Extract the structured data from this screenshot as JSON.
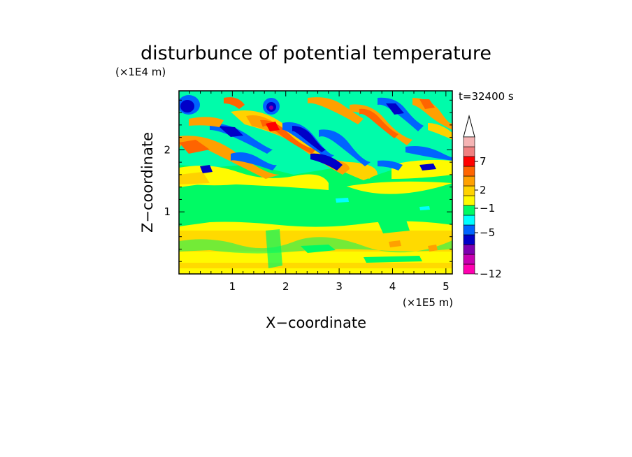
{
  "chart_data": {
    "type": "heatmap",
    "title": "disturbunce of potential temperature",
    "xlabel": "X−coordinate",
    "ylabel": "Z−coordinate",
    "x_units": "(×1E5 m)",
    "y_units": "(×1E4 m)",
    "time_label": "t=32400 s",
    "xlim": [
      0,
      5.12
    ],
    "ylim": [
      0,
      2.95
    ],
    "xticks": [
      "1",
      "2",
      "3",
      "4",
      "5"
    ],
    "yticks": [
      "1",
      "2"
    ],
    "colorbar": {
      "labels": [
        "7",
        "2",
        "−1",
        "−5",
        "−12"
      ],
      "extend_top": true,
      "colors": [
        "#ff00b0",
        "#c800b0",
        "#7e00b0",
        "#0000c8",
        "#0064ff",
        "#00ffff",
        "#00fa64",
        "#fffa00",
        "#ffd200",
        "#ffa000",
        "#ff6400",
        "#ff0000",
        "#f08080",
        "#f5b4b4"
      ]
    },
    "field_description": [
      {
        "layer": "z 0-0.9",
        "dominant": "yellow (~1 to 2)"
      },
      {
        "layer": "z 0.9-1.4",
        "dominant": "green (~0)"
      },
      {
        "layer": "z 1.4-3.0",
        "dominant": "tilted wave bands, blue to red (~-5 to 7)"
      }
    ]
  }
}
